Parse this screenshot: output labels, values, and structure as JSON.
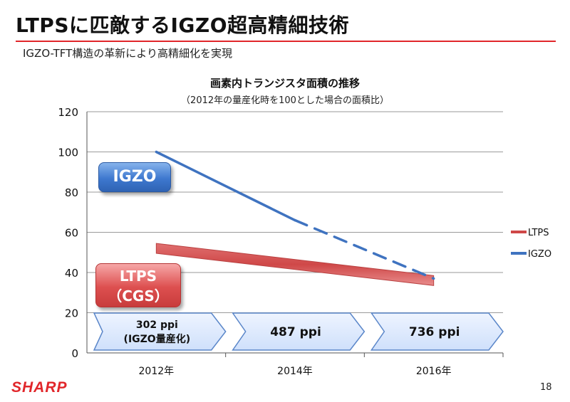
{
  "slide": {
    "title": "LTPSに匹敵するIGZO超高精細技術",
    "subtitle": "IGZO-TFT構造の革新により高精細化を実現",
    "page_number": "18",
    "logo_text": "SHARP"
  },
  "colors": {
    "accent": "#e1262a",
    "ltps": "#cf4848",
    "igzo": "#3f73c0",
    "arrow_fill": "#cfe0fb",
    "arrow_stroke": "#5a86c9",
    "grid": "#9a9a9a"
  },
  "callouts": {
    "igzo": "IGZO",
    "ltps_line1": "LTPS",
    "ltps_line2": "（CGS）"
  },
  "chart_data": {
    "type": "line",
    "title": "画素内トランジスタ面積の推移",
    "subtitle": "（2012年の量産化時を100とした場合の面積比）",
    "categories": [
      "2012年",
      "2014年",
      "2016年"
    ],
    "ylim": [
      0,
      120
    ],
    "yticks": [
      0,
      20,
      40,
      60,
      80,
      100,
      120
    ],
    "grid": true,
    "legend_position": "right",
    "series": [
      {
        "name": "LTPS",
        "x": [
          0,
          2
        ],
        "values": [
          52,
          36
        ],
        "style": "band"
      },
      {
        "name": "IGZO",
        "x": [
          0,
          1,
          2
        ],
        "values": [
          100,
          66,
          37
        ],
        "dashed_from_index": 1
      }
    ],
    "ppi_arrows": [
      {
        "line1": "302 ppi",
        "line2": "(IGZO量産化)"
      },
      {
        "line1": "487 ppi",
        "line2": ""
      },
      {
        "line1": "736 ppi",
        "line2": ""
      }
    ]
  }
}
